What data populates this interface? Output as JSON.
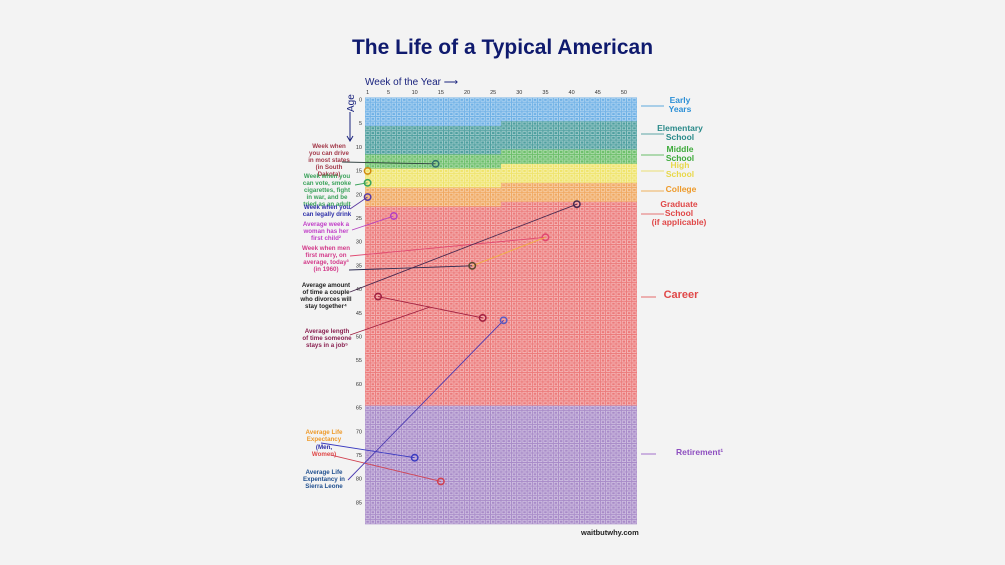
{
  "title": "The Life of a Typical American",
  "credit": "waitbutwhy.com",
  "chart_data": {
    "type": "heatmap",
    "title": "The Life of a Typical American",
    "xlabel": "Week of the Year",
    "ylabel": "Age",
    "x_ticks": [
      1,
      5,
      10,
      15,
      20,
      25,
      30,
      35,
      40,
      45,
      50
    ],
    "y_ticks": [
      0,
      5,
      10,
      15,
      20,
      25,
      30,
      35,
      40,
      45,
      50,
      55,
      60,
      65,
      70,
      75,
      80,
      85
    ],
    "weeks_per_row": 52,
    "rows": 90,
    "stages": [
      {
        "name": "Early Years",
        "label_lines": [
          "Early",
          "Years"
        ],
        "start_age": 0,
        "start_week": 1,
        "color": "#6fb1e6",
        "label_color": "#2b8fd6"
      },
      {
        "name": "Elementary School",
        "label_lines": [
          "Elementary",
          "School"
        ],
        "start_age": 5,
        "start_week": 27,
        "color": "#4e9f9f",
        "label_color": "#2a8a8a"
      },
      {
        "name": "Middle School",
        "label_lines": [
          "Middle",
          "School"
        ],
        "start_age": 11,
        "start_week": 27,
        "color": "#6cbf6a",
        "label_color": "#3daa3a"
      },
      {
        "name": "High School",
        "label_lines": [
          "High",
          "School"
        ],
        "start_age": 14,
        "start_week": 27,
        "color": "#efe46a",
        "label_color": "#e8d84a"
      },
      {
        "name": "College",
        "label_lines": [
          "College"
        ],
        "start_age": 18,
        "start_week": 27,
        "color": "#f0a860",
        "label_color": "#ee9a2a"
      },
      {
        "name": "Graduate School (if applicable)",
        "label_lines": [
          "Graduate",
          "School",
          "(if applicable)"
        ],
        "start_age": 22,
        "start_week": 27,
        "color": "#ec7a7a",
        "label_color": "#e04848"
      },
      {
        "name": "Career",
        "label_lines": [
          "Career"
        ],
        "start_age": 22,
        "start_week": 27,
        "color": "#ec7a7a",
        "label_color": "#e04848"
      },
      {
        "name": "Retirement",
        "label_lines": [
          "Retirement¹"
        ],
        "start_age": 65,
        "start_week": 1,
        "color": "#a88bc8",
        "label_color": "#8e4fc0"
      }
    ],
    "annotations": [
      {
        "text": [
          "Week when",
          "you can drive",
          "in most states",
          "(in South",
          "Dakota)"
        ],
        "age": 14.0,
        "week": 14,
        "color": "#a33a4a",
        "marker_color": "#2f6f6a"
      },
      {
        "text": [
          "Week when you",
          "can vote, smoke",
          "cigarettes, fight",
          "in war, and be",
          "tried as an adult"
        ],
        "age": 18.0,
        "week": 1,
        "color": "#3aa25a",
        "marker_color": "#3aa25a"
      },
      {
        "text": [
          "Week when you",
          "can legally drink"
        ],
        "age": 21.0,
        "week": 1,
        "color": "#2d2fa8",
        "marker_color": "#5a3aa0"
      },
      {
        "text": [
          "Average week a",
          "woman has her",
          "first child²"
        ],
        "age": 25.0,
        "week": 6,
        "color": "#c13fc8",
        "marker_color": "#b43fc0"
      },
      {
        "text": [
          "Week when men",
          "first marry, on",
          "average, today³",
          "(in 1960)"
        ],
        "age": 29.5,
        "week": 35,
        "color": "#d33a8a",
        "marker_color": "#e04870",
        "sub_age": 35.5,
        "sub_week": 21
      },
      {
        "text": [
          "Average amount",
          "of time a couple",
          "who divorces will",
          "stay together⁴"
        ],
        "age": 22.5,
        "week": 41,
        "color": "#222222",
        "marker_color": "#4a2a50"
      },
      {
        "text": [
          "Average length",
          "of time someone",
          "stays in a job⁵"
        ],
        "age": 42.0,
        "week": 3,
        "color": "#8a2050",
        "marker_color": "#a02040",
        "end_age": 46.5,
        "end_week": 23
      },
      {
        "text": [
          "Average Life",
          "Expectancy"
        ],
        "color": "#ee9a2a"
      },
      {
        "text": [
          "(Men,",
          "Women)"
        ],
        "color": "#2d2fa8",
        "men_age": 76.0,
        "men_week": 10,
        "women_age": 81.0,
        "women_week": 15
      },
      {
        "text": [
          "Average Life",
          "Expentancy in",
          "Sierra Leone"
        ],
        "age": 47.0,
        "week": 27,
        "color": "#1f4f8f",
        "marker_color": "#5a5ac0"
      }
    ]
  }
}
